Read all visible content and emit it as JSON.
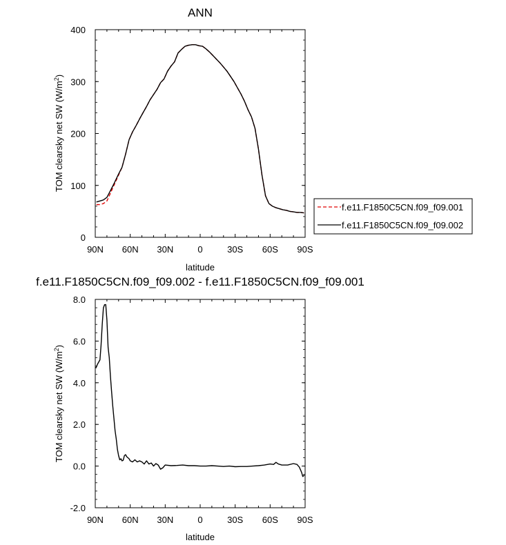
{
  "chart_data": [
    {
      "type": "line",
      "title": "ANN",
      "xlabel": "latitude",
      "ylabel": "TOM clearsky net SW (W/m",
      "ylabel_sup": "2",
      "ylabel_end": ")",
      "xlim": [
        90,
        -90
      ],
      "ylim": [
        0,
        400
      ],
      "xticks": [
        90,
        60,
        30,
        0,
        -30,
        -60,
        -90
      ],
      "xtick_labels": [
        "90N",
        "60N",
        "30N",
        "0",
        "30S",
        "60S",
        "90S"
      ],
      "yticks": [
        0,
        100,
        200,
        300,
        400
      ],
      "ytick_labels": [
        "0",
        "100",
        "200",
        "300",
        "400"
      ],
      "legend_position": "right, outside plot",
      "series": [
        {
          "name": "f.e11.F1850C5CN.f09_f09.001",
          "color": "#e00000",
          "dash": "dashed",
          "x": [
            89,
            86,
            83,
            80,
            77,
            74,
            70,
            67,
            64,
            61,
            58,
            55,
            52,
            49,
            46,
            43,
            40,
            37,
            34,
            31,
            28,
            25,
            22,
            19,
            16,
            13,
            10,
            7,
            4,
            1,
            -2,
            -5,
            -8,
            -11,
            -14,
            -17,
            -20,
            -23,
            -26,
            -29,
            -32,
            -35,
            -38,
            -41,
            -44,
            -47,
            -50,
            -53,
            -56,
            -59,
            -62,
            -65,
            -68,
            -71,
            -74,
            -77,
            -80,
            -83,
            -86,
            -89
          ],
          "y": [
            63,
            63,
            65,
            70,
            85,
            100,
            120,
            135,
            160,
            188,
            203,
            215,
            228,
            240,
            252,
            265,
            275,
            285,
            298,
            305,
            320,
            330,
            338,
            355,
            362,
            368,
            370,
            371,
            371,
            369,
            368,
            363,
            357,
            350,
            343,
            336,
            328,
            320,
            310,
            300,
            288,
            276,
            262,
            246,
            232,
            210,
            170,
            120,
            80,
            65,
            60,
            57,
            55,
            53,
            52,
            50,
            49,
            48,
            48,
            47
          ]
        },
        {
          "name": "f.e11.F1850C5CN.f09_f09.002",
          "color": "#000000",
          "dash": "solid",
          "x": [
            89,
            86,
            83,
            80,
            77,
            74,
            70,
            67,
            64,
            61,
            58,
            55,
            52,
            49,
            46,
            43,
            40,
            37,
            34,
            31,
            28,
            25,
            22,
            19,
            16,
            13,
            10,
            7,
            4,
            1,
            -2,
            -5,
            -8,
            -11,
            -14,
            -17,
            -20,
            -23,
            -26,
            -29,
            -32,
            -35,
            -38,
            -41,
            -44,
            -47,
            -50,
            -53,
            -56,
            -59,
            -62,
            -65,
            -68,
            -71,
            -74,
            -77,
            -80,
            -83,
            -86,
            -89
          ],
          "y": [
            68,
            70,
            72,
            77,
            90,
            103,
            122,
            135,
            160,
            188,
            203,
            215,
            228,
            240,
            252,
            265,
            275,
            285,
            298,
            305,
            320,
            330,
            338,
            355,
            362,
            368,
            370,
            371,
            371,
            369,
            368,
            363,
            357,
            350,
            343,
            336,
            328,
            320,
            310,
            300,
            288,
            276,
            262,
            246,
            232,
            210,
            170,
            120,
            80,
            65,
            60,
            57,
            55,
            53,
            52,
            50,
            49,
            48,
            48,
            47
          ]
        }
      ]
    },
    {
      "type": "line",
      "title": "f.e11.F1850C5CN.f09_f09.002 - f.e11.F1850C5CN.f09_f09.001",
      "xlabel": "latitude",
      "ylabel": "TOM clearsky net SW (W/m",
      "ylabel_sup": "2",
      "ylabel_end": ")",
      "xlim": [
        90,
        -90
      ],
      "ylim": [
        -2.0,
        8.0
      ],
      "xticks": [
        90,
        60,
        30,
        0,
        -30,
        -60,
        -90
      ],
      "xtick_labels": [
        "90N",
        "60N",
        "30N",
        "0",
        "30S",
        "60S",
        "90S"
      ],
      "yticks": [
        -2,
        0,
        2,
        4,
        6,
        8
      ],
      "ytick_labels": [
        "-2.0",
        "0.0",
        "2.0",
        "4.0",
        "6.0",
        "8.0"
      ],
      "series": [
        {
          "color": "#000000",
          "dash": "solid",
          "x": [
            89.5,
            88,
            86,
            85,
            84,
            83,
            82,
            81,
            80,
            79,
            78,
            77,
            76,
            75,
            74,
            73,
            72,
            71,
            70,
            69,
            68,
            67,
            66,
            65,
            64,
            63,
            62,
            61,
            60,
            58,
            56,
            54,
            52,
            50,
            48,
            46,
            44,
            42,
            40,
            38,
            36,
            34,
            32,
            30,
            25,
            20,
            15,
            10,
            5,
            0,
            -5,
            -10,
            -15,
            -20,
            -25,
            -30,
            -35,
            -40,
            -45,
            -50,
            -55,
            -60,
            -63,
            -65,
            -67,
            -70,
            -75,
            -80,
            -83,
            -85,
            -87,
            -88,
            -89,
            -89.5
          ],
          "y": [
            4.7,
            4.9,
            5.1,
            5.8,
            6.8,
            7.6,
            7.75,
            7.75,
            7.0,
            5.7,
            5.2,
            4.3,
            3.6,
            2.9,
            2.3,
            1.7,
            1.3,
            0.8,
            0.5,
            0.3,
            0.35,
            0.25,
            0.28,
            0.5,
            0.55,
            0.45,
            0.4,
            0.35,
            0.25,
            0.2,
            0.3,
            0.2,
            0.25,
            0.2,
            0.1,
            0.25,
            0.1,
            0.15,
            0.0,
            0.12,
            0.05,
            -0.15,
            -0.08,
            0.05,
            0.02,
            0.03,
            0.05,
            0.02,
            0.02,
            0.0,
            0.0,
            0.02,
            0.0,
            -0.02,
            0.0,
            -0.03,
            -0.02,
            -0.02,
            0.0,
            0.02,
            0.05,
            0.1,
            0.08,
            0.18,
            0.1,
            0.05,
            0.05,
            0.12,
            0.08,
            -0.05,
            -0.3,
            -0.5,
            -0.45,
            -0.45
          ]
        }
      ]
    }
  ]
}
